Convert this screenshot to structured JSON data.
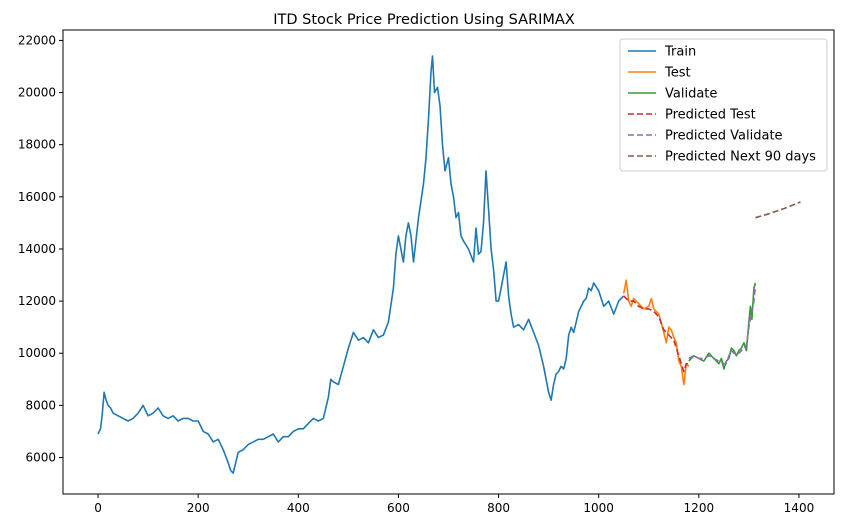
{
  "chart_data": {
    "type": "line",
    "title": "ITD Stock Price Prediction Using SARIMAX",
    "xlabel": "",
    "ylabel": "",
    "xlim": [
      -70,
      1470
    ],
    "ylim": [
      4600,
      22400
    ],
    "xticks": [
      0,
      200,
      400,
      600,
      800,
      1000,
      1200,
      1400
    ],
    "yticks": [
      6000,
      8000,
      10000,
      12000,
      14000,
      16000,
      18000,
      20000,
      22000
    ],
    "grid": false,
    "legend_position": "top-right",
    "series": [
      {
        "name": "Train",
        "color": "#1f77b4",
        "dash": "solid",
        "points": [
          [
            0,
            6900
          ],
          [
            5,
            7100
          ],
          [
            8,
            7600
          ],
          [
            12,
            8500
          ],
          [
            16,
            8200
          ],
          [
            20,
            8000
          ],
          [
            25,
            7900
          ],
          [
            30,
            7700
          ],
          [
            40,
            7600
          ],
          [
            50,
            7500
          ],
          [
            60,
            7400
          ],
          [
            70,
            7500
          ],
          [
            80,
            7700
          ],
          [
            90,
            8000
          ],
          [
            100,
            7600
          ],
          [
            110,
            7700
          ],
          [
            120,
            7900
          ],
          [
            130,
            7600
          ],
          [
            140,
            7500
          ],
          [
            150,
            7600
          ],
          [
            160,
            7400
          ],
          [
            170,
            7500
          ],
          [
            180,
            7500
          ],
          [
            190,
            7400
          ],
          [
            200,
            7400
          ],
          [
            210,
            7000
          ],
          [
            220,
            6900
          ],
          [
            230,
            6600
          ],
          [
            240,
            6700
          ],
          [
            250,
            6300
          ],
          [
            260,
            5800
          ],
          [
            265,
            5500
          ],
          [
            270,
            5400
          ],
          [
            275,
            5800
          ],
          [
            280,
            6200
          ],
          [
            290,
            6300
          ],
          [
            300,
            6500
          ],
          [
            310,
            6600
          ],
          [
            320,
            6700
          ],
          [
            330,
            6700
          ],
          [
            340,
            6800
          ],
          [
            350,
            6900
          ],
          [
            360,
            6600
          ],
          [
            370,
            6800
          ],
          [
            380,
            6800
          ],
          [
            390,
            7000
          ],
          [
            400,
            7100
          ],
          [
            410,
            7100
          ],
          [
            420,
            7300
          ],
          [
            430,
            7500
          ],
          [
            440,
            7400
          ],
          [
            450,
            7500
          ],
          [
            460,
            8300
          ],
          [
            465,
            9000
          ],
          [
            470,
            8900
          ],
          [
            480,
            8800
          ],
          [
            490,
            9500
          ],
          [
            500,
            10200
          ],
          [
            510,
            10800
          ],
          [
            520,
            10500
          ],
          [
            530,
            10600
          ],
          [
            540,
            10400
          ],
          [
            550,
            10900
          ],
          [
            560,
            10600
          ],
          [
            570,
            10700
          ],
          [
            580,
            11200
          ],
          [
            590,
            12500
          ],
          [
            595,
            13800
          ],
          [
            600,
            14500
          ],
          [
            605,
            14000
          ],
          [
            610,
            13500
          ],
          [
            615,
            14500
          ],
          [
            620,
            15000
          ],
          [
            625,
            14500
          ],
          [
            630,
            13500
          ],
          [
            640,
            15200
          ],
          [
            650,
            16500
          ],
          [
            655,
            17500
          ],
          [
            660,
            19000
          ],
          [
            665,
            20800
          ],
          [
            668,
            21400
          ],
          [
            672,
            20000
          ],
          [
            678,
            20200
          ],
          [
            683,
            19500
          ],
          [
            688,
            18000
          ],
          [
            693,
            17000
          ],
          [
            700,
            17500
          ],
          [
            705,
            16500
          ],
          [
            710,
            16000
          ],
          [
            715,
            15200
          ],
          [
            720,
            15400
          ],
          [
            725,
            14500
          ],
          [
            730,
            14300
          ],
          [
            740,
            14000
          ],
          [
            750,
            13500
          ],
          [
            755,
            14800
          ],
          [
            760,
            13800
          ],
          [
            765,
            13900
          ],
          [
            770,
            15000
          ],
          [
            775,
            17000
          ],
          [
            780,
            15500
          ],
          [
            785,
            14000
          ],
          [
            790,
            13200
          ],
          [
            795,
            12000
          ],
          [
            800,
            12000
          ],
          [
            805,
            12500
          ],
          [
            810,
            13000
          ],
          [
            815,
            13500
          ],
          [
            820,
            12200
          ],
          [
            825,
            11500
          ],
          [
            830,
            11000
          ],
          [
            840,
            11100
          ],
          [
            850,
            10900
          ],
          [
            860,
            11300
          ],
          [
            870,
            10800
          ],
          [
            880,
            10300
          ],
          [
            890,
            9500
          ],
          [
            895,
            9000
          ],
          [
            900,
            8500
          ],
          [
            905,
            8200
          ],
          [
            910,
            8800
          ],
          [
            915,
            9200
          ],
          [
            920,
            9300
          ],
          [
            925,
            9500
          ],
          [
            930,
            9400
          ],
          [
            935,
            9800
          ],
          [
            940,
            10700
          ],
          [
            945,
            11000
          ],
          [
            950,
            10800
          ],
          [
            955,
            11200
          ],
          [
            960,
            11600
          ],
          [
            965,
            11800
          ],
          [
            970,
            12000
          ],
          [
            975,
            12100
          ],
          [
            980,
            12500
          ],
          [
            985,
            12400
          ],
          [
            990,
            12700
          ],
          [
            1000,
            12400
          ],
          [
            1010,
            11800
          ],
          [
            1020,
            12000
          ],
          [
            1030,
            11500
          ],
          [
            1040,
            12000
          ],
          [
            1050,
            12200
          ]
        ]
      },
      {
        "name": "Test",
        "color": "#ff7f0e",
        "dash": "solid",
        "points": [
          [
            1050,
            12300
          ],
          [
            1055,
            12800
          ],
          [
            1060,
            12000
          ],
          [
            1065,
            11800
          ],
          [
            1070,
            12100
          ],
          [
            1080,
            11900
          ],
          [
            1090,
            11700
          ],
          [
            1100,
            11800
          ],
          [
            1105,
            12100
          ],
          [
            1110,
            11700
          ],
          [
            1120,
            11500
          ],
          [
            1130,
            10800
          ],
          [
            1135,
            10400
          ],
          [
            1140,
            11000
          ],
          [
            1145,
            10900
          ],
          [
            1150,
            10600
          ],
          [
            1155,
            10400
          ],
          [
            1160,
            9700
          ],
          [
            1165,
            9500
          ],
          [
            1170,
            8800
          ],
          [
            1175,
            9600
          ],
          [
            1180,
            9500
          ]
        ]
      },
      {
        "name": "Validate",
        "color": "#2ca02c",
        "dash": "solid",
        "points": [
          [
            1180,
            9700
          ],
          [
            1190,
            9900
          ],
          [
            1200,
            9800
          ],
          [
            1210,
            9700
          ],
          [
            1220,
            10000
          ],
          [
            1230,
            9800
          ],
          [
            1240,
            9600
          ],
          [
            1245,
            9800
          ],
          [
            1250,
            9400
          ],
          [
            1255,
            9700
          ],
          [
            1260,
            9800
          ],
          [
            1265,
            10200
          ],
          [
            1270,
            10100
          ],
          [
            1275,
            9900
          ],
          [
            1280,
            10100
          ],
          [
            1285,
            10200
          ],
          [
            1290,
            10400
          ],
          [
            1295,
            10100
          ],
          [
            1300,
            11200
          ],
          [
            1303,
            11800
          ],
          [
            1306,
            11300
          ],
          [
            1310,
            12500
          ],
          [
            1313,
            12700
          ]
        ]
      },
      {
        "name": "Predicted Test",
        "color": "#d62728",
        "dash": "dashed",
        "points": [
          [
            1050,
            12200
          ],
          [
            1060,
            12000
          ],
          [
            1070,
            12000
          ],
          [
            1080,
            11800
          ],
          [
            1090,
            11700
          ],
          [
            1100,
            11700
          ],
          [
            1110,
            11600
          ],
          [
            1120,
            11400
          ],
          [
            1130,
            10900
          ],
          [
            1140,
            10700
          ],
          [
            1150,
            10500
          ],
          [
            1160,
            9900
          ],
          [
            1165,
            9600
          ],
          [
            1170,
            9300
          ],
          [
            1175,
            9600
          ],
          [
            1180,
            9600
          ]
        ]
      },
      {
        "name": "Predicted Validate",
        "color": "#9467bd",
        "dash": "dashed",
        "points": [
          [
            1180,
            9800
          ],
          [
            1190,
            9900
          ],
          [
            1200,
            9800
          ],
          [
            1210,
            9800
          ],
          [
            1220,
            9900
          ],
          [
            1230,
            9800
          ],
          [
            1240,
            9700
          ],
          [
            1250,
            9600
          ],
          [
            1255,
            9600
          ],
          [
            1260,
            9900
          ],
          [
            1265,
            10100
          ],
          [
            1270,
            10000
          ],
          [
            1280,
            10000
          ],
          [
            1290,
            10200
          ],
          [
            1295,
            10300
          ],
          [
            1300,
            11000
          ],
          [
            1305,
            11500
          ],
          [
            1310,
            12000
          ],
          [
            1313,
            12600
          ]
        ]
      },
      {
        "name": "Predicted Next 90 days",
        "color": "#8c564b",
        "dash": "dashed",
        "points": [
          [
            1313,
            15200
          ],
          [
            1340,
            15350
          ],
          [
            1370,
            15550
          ],
          [
            1403,
            15800
          ]
        ]
      }
    ]
  }
}
